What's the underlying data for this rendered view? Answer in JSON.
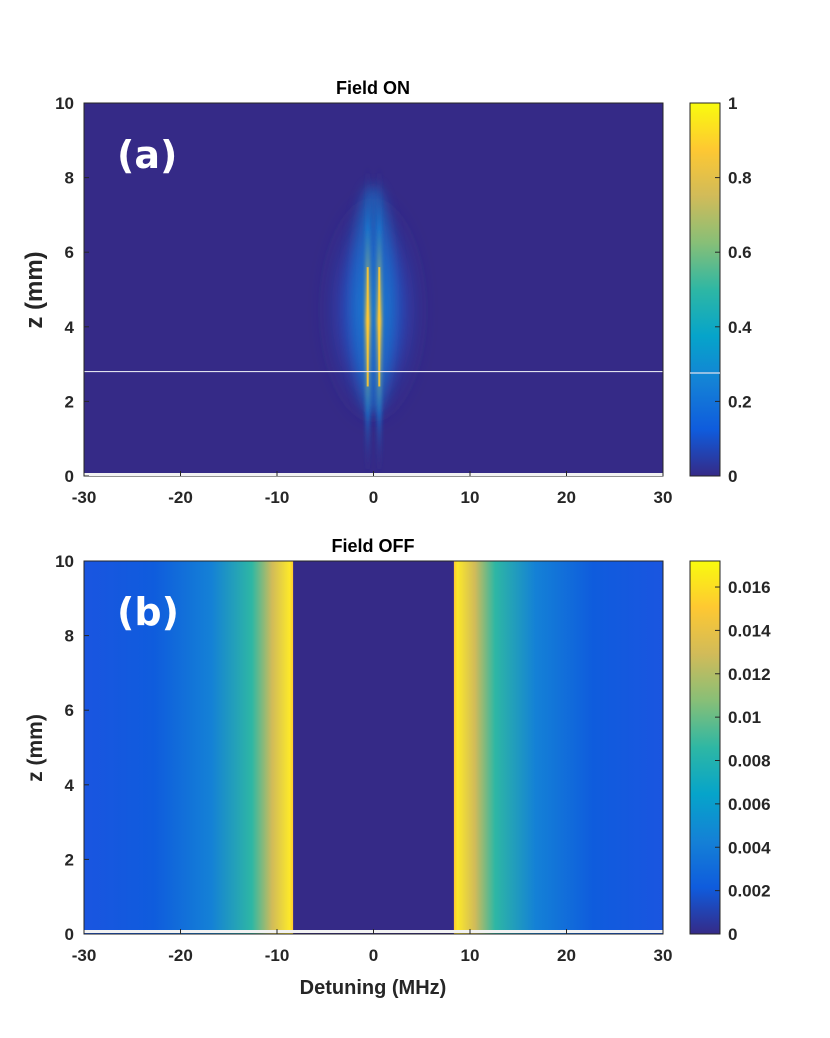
{
  "chart_data": [
    {
      "type": "heatmap",
      "title": "Field ON",
      "panel_label": "(a)",
      "xlabel": "",
      "ylabel": "z (mm)",
      "xlim": [
        -30,
        30
      ],
      "ylim": [
        0,
        10
      ],
      "x_ticks": [
        "-30",
        "-20",
        "-10",
        "0",
        "10",
        "20",
        "30"
      ],
      "y_ticks": [
        "0",
        "2",
        "4",
        "6",
        "8",
        "10"
      ],
      "colorbar": {
        "min": 0,
        "max": 1,
        "ticks": [
          "0",
          "0.2",
          "0.4",
          "0.6",
          "0.8",
          "1"
        ]
      },
      "colormap": "parula",
      "features": {
        "peaks_detuning": [
          -0.6,
          0.6
        ],
        "peak_z": 4,
        "horizontal_line_z": 2.8,
        "horizontal_line_color": "#e0e0ee"
      }
    },
    {
      "type": "heatmap",
      "title": "Field OFF",
      "panel_label": "(b)",
      "xlabel": "Detuning (MHz)",
      "ylabel": "z (mm)",
      "xlim": [
        -30,
        30
      ],
      "ylim": [
        0,
        10
      ],
      "x_ticks": [
        "-30",
        "-20",
        "-10",
        "0",
        "10",
        "20",
        "30"
      ],
      "y_ticks": [
        "0",
        "2",
        "4",
        "6",
        "8",
        "10"
      ],
      "colorbar": {
        "min": 0,
        "max": 0.0172,
        "ticks": [
          "0",
          "0.002",
          "0.004",
          "0.006",
          "0.008",
          "0.01",
          "0.012",
          "0.014",
          "0.016"
        ]
      },
      "colormap": "parula",
      "features": {
        "gap_edges_detuning": [
          -8.3,
          8.3
        ],
        "max_value": 0.0172
      }
    }
  ]
}
